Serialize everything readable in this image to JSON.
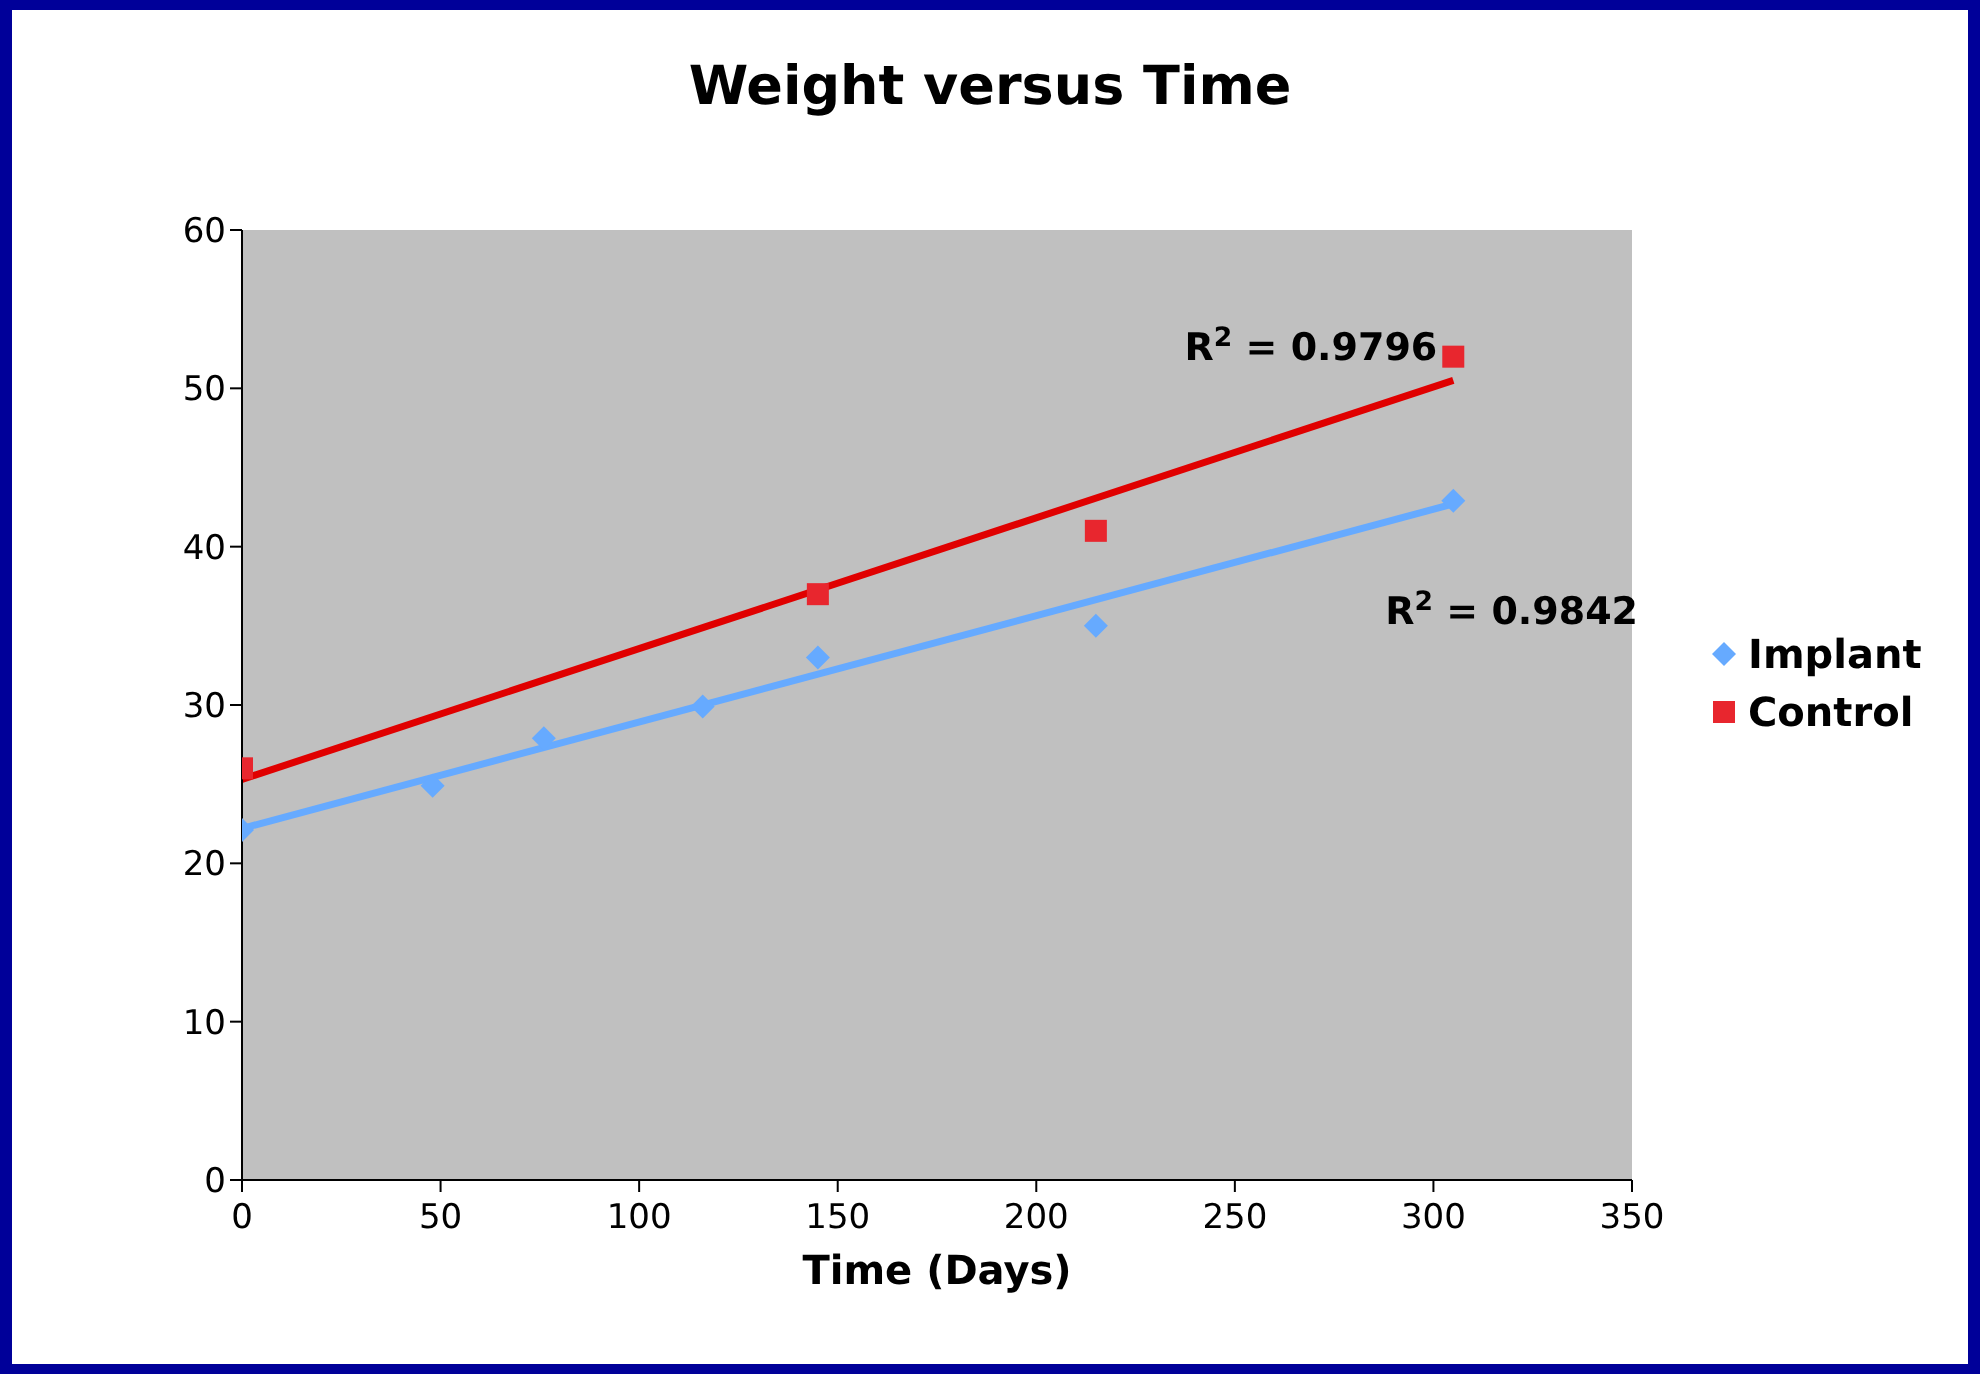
{
  "chart_data": {
    "type": "scatter",
    "title": "Weight versus Time",
    "xlabel": "Time (Days)",
    "xlim": [
      0,
      350
    ],
    "xticks": [
      0,
      50,
      100,
      150,
      200,
      250,
      300,
      350
    ],
    "ylim": [
      0,
      60
    ],
    "yticks": [
      0,
      10,
      20,
      30,
      40,
      50,
      60
    ],
    "grid": false,
    "legend": "right",
    "series": [
      {
        "name": "Implant",
        "marker": "diamond",
        "color": "#66aaff",
        "x": [
          0,
          48,
          76,
          116,
          145,
          215,
          305
        ],
        "values": [
          22.1,
          24.9,
          27.9,
          29.9,
          33,
          35,
          42.9
        ]
      },
      {
        "name": "Control",
        "marker": "square",
        "color": "#e8262e",
        "x": [
          0,
          145,
          215,
          305
        ],
        "values": [
          26,
          37,
          41,
          52
        ]
      },
      {
        "type": "line",
        "marker": "none",
        "color": "#e00000",
        "x": [
          0,
          305
        ],
        "values": [
          25.3,
          50.5
        ]
      },
      {
        "type": "line",
        "marker": "none",
        "color": "#66aaff",
        "x": [
          0,
          305
        ],
        "values": [
          22.2,
          42.7
        ]
      }
    ],
    "annotations": [
      "R$^{2}$ = 0.9796",
      "R$^{2}$ = 0.9842"
    ]
  }
}
